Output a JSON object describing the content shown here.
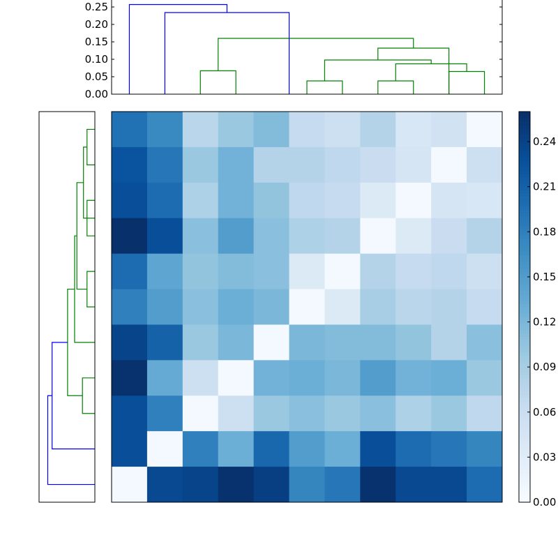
{
  "chart_data": [
    {
      "type": "dendrogram",
      "orientation": "top",
      "ylim": [
        0,
        0.27
      ],
      "yticks": [
        "0.00",
        "0.05",
        "0.10",
        "0.15",
        "0.20",
        "0.25"
      ],
      "ytick_values": [
        0,
        0.05,
        0.1,
        0.15,
        0.2,
        0.25
      ],
      "links": [
        {
          "left": 9,
          "right": 10,
          "height": 0.065,
          "color": "#008000"
        },
        {
          "left": 7,
          "right": 8,
          "height": 0.038,
          "color": "#008000"
        },
        {
          "left": 7.5,
          "right": 9.5,
          "height": 0.087,
          "color": "#008000"
        },
        {
          "left": 5,
          "right": 6,
          "height": 0.038,
          "color": "#008000"
        },
        {
          "left": 5.5,
          "right": 8.5,
          "height": 0.098,
          "color": "#008000"
        },
        {
          "left": 2,
          "right": 3,
          "height": 0.067,
          "color": "#008000"
        },
        {
          "left": 7,
          "right": 9,
          "height": 0.132,
          "color": "#008000"
        },
        {
          "left": 2.5,
          "right": 8,
          "height": 0.16,
          "color": "#008000"
        },
        {
          "left": 1,
          "right": 4.5,
          "height": 0.234,
          "color": "#0000ff"
        },
        {
          "left": 0,
          "right": 2.75,
          "height": 0.257,
          "color": "#0000ff"
        }
      ]
    },
    {
      "type": "dendrogram",
      "orientation": "left",
      "links": [
        {
          "top": 0,
          "bottom": 1,
          "height": 0.038,
          "color": "#008000"
        },
        {
          "top": 0.5,
          "bottom": 2.5,
          "height": 0.055,
          "color": "#008000"
        },
        {
          "top": 2,
          "bottom": 3,
          "height": 0.038,
          "color": "#008000"
        },
        {
          "top": 4,
          "bottom": 5,
          "height": 0.038,
          "color": "#008000"
        },
        {
          "top": 1.5,
          "bottom": 4.5,
          "height": 0.087,
          "color": "#008000"
        },
        {
          "top": 3,
          "bottom": 6,
          "height": 0.098,
          "color": "#008000"
        },
        {
          "top": 7,
          "bottom": 8,
          "height": 0.06,
          "color": "#008000"
        },
        {
          "top": 4.5,
          "bottom": 7.5,
          "height": 0.132,
          "color": "#008000"
        },
        {
          "top": 6,
          "bottom": 9,
          "height": 0.207,
          "color": "#0000ff"
        },
        {
          "top": 7.5,
          "bottom": 10,
          "height": 0.228,
          "color": "#0000ff"
        }
      ],
      "xlim": [
        0,
        0.27
      ]
    },
    {
      "type": "heatmap",
      "colormap": "Blues",
      "vmin": 0,
      "vmax": 0.26,
      "rows": 11,
      "cols": 11,
      "values": [
        [
          0.195,
          0.17,
          0.075,
          0.1,
          0.115,
          0.065,
          0.055,
          0.08,
          0.04,
          0.05,
          0.005
        ],
        [
          0.225,
          0.19,
          0.1,
          0.125,
          0.08,
          0.08,
          0.07,
          0.06,
          0.045,
          0.005,
          0.055
        ],
        [
          0.23,
          0.2,
          0.085,
          0.125,
          0.105,
          0.07,
          0.065,
          0.035,
          0.005,
          0.045,
          0.04
        ],
        [
          0.26,
          0.23,
          0.11,
          0.15,
          0.11,
          0.085,
          0.08,
          0.005,
          0.035,
          0.06,
          0.08
        ],
        [
          0.2,
          0.14,
          0.105,
          0.115,
          0.11,
          0.035,
          0.005,
          0.08,
          0.065,
          0.07,
          0.055
        ],
        [
          0.18,
          0.15,
          0.11,
          0.13,
          0.12,
          0.005,
          0.035,
          0.09,
          0.075,
          0.08,
          0.065
        ],
        [
          0.24,
          0.21,
          0.1,
          0.12,
          0.005,
          0.12,
          0.115,
          0.115,
          0.105,
          0.08,
          0.11
        ],
        [
          0.258,
          0.135,
          0.055,
          0.005,
          0.125,
          0.13,
          0.12,
          0.15,
          0.125,
          0.13,
          0.1
        ],
        [
          0.23,
          0.18,
          0.005,
          0.055,
          0.1,
          0.11,
          0.1,
          0.11,
          0.085,
          0.1,
          0.07
        ],
        [
          0.23,
          0.005,
          0.18,
          0.13,
          0.205,
          0.15,
          0.13,
          0.23,
          0.2,
          0.19,
          0.175
        ],
        [
          0.005,
          0.235,
          0.24,
          0.258,
          0.245,
          0.175,
          0.19,
          0.258,
          0.235,
          0.235,
          0.2
        ]
      ]
    },
    {
      "type": "colorbar",
      "vmin": 0,
      "vmax": 0.26,
      "ticks": [
        "0.00",
        "0.03",
        "0.06",
        "0.09",
        "0.12",
        "0.15",
        "0.18",
        "0.21",
        "0.24"
      ],
      "tick_values": [
        0,
        0.03,
        0.06,
        0.09,
        0.12,
        0.15,
        0.18,
        0.21,
        0.24
      ]
    }
  ]
}
